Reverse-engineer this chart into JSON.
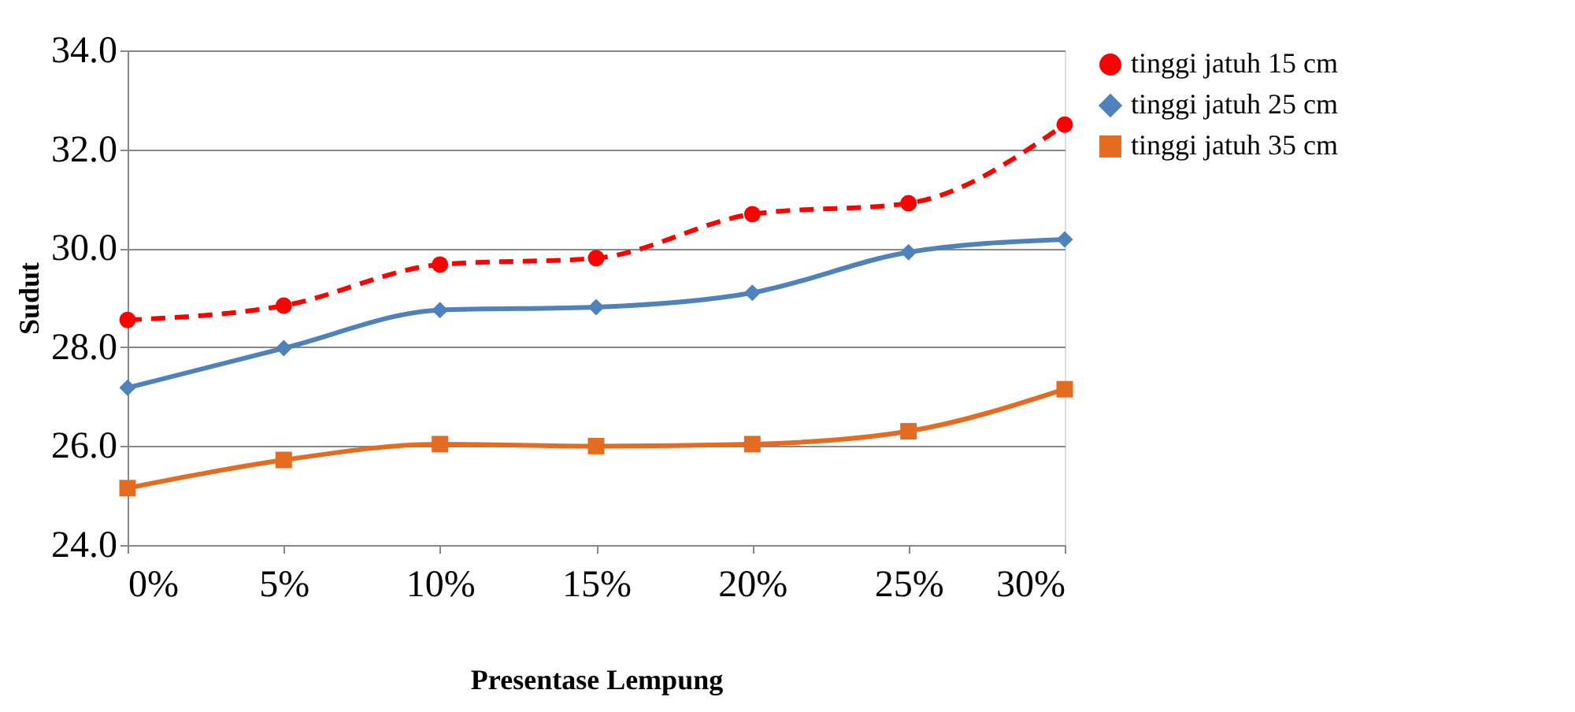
{
  "chart_data": {
    "type": "line",
    "xlabel": "Presentase Lempung",
    "ylabel": "Sudut",
    "categories": [
      "0%",
      "5%",
      "10%",
      "15%",
      "20%",
      "25%",
      "30%"
    ],
    "series": [
      {
        "name": "tinggi jatuh 15 cm",
        "color": "#ff0000",
        "marker": "circle",
        "line_style": "dashed",
        "values": [
          28.55,
          28.84,
          29.67,
          29.8,
          30.69,
          30.91,
          32.5
        ]
      },
      {
        "name": "tinggi jatuh 25 cm",
        "color": "#4f81bd",
        "marker": "diamond",
        "line_style": "solid",
        "values": [
          27.18,
          27.98,
          28.75,
          28.81,
          29.1,
          29.92,
          30.18
        ]
      },
      {
        "name": "tinggi jatuh 35 cm",
        "color": "#e46c22",
        "marker": "square",
        "line_style": "solid",
        "values": [
          25.15,
          25.72,
          26.04,
          26.0,
          26.04,
          26.3,
          27.15
        ]
      }
    ],
    "ylim": [
      24,
      34
    ],
    "yticks": [
      {
        "value": 24,
        "label": "24.0"
      },
      {
        "value": 26,
        "label": "26.0"
      },
      {
        "value": 28,
        "label": "28.0"
      },
      {
        "value": 30,
        "label": "30.0"
      },
      {
        "value": 32,
        "label": "32.0"
      },
      {
        "value": 34,
        "label": "34.0"
      }
    ],
    "grid": "y",
    "legend": "right"
  }
}
